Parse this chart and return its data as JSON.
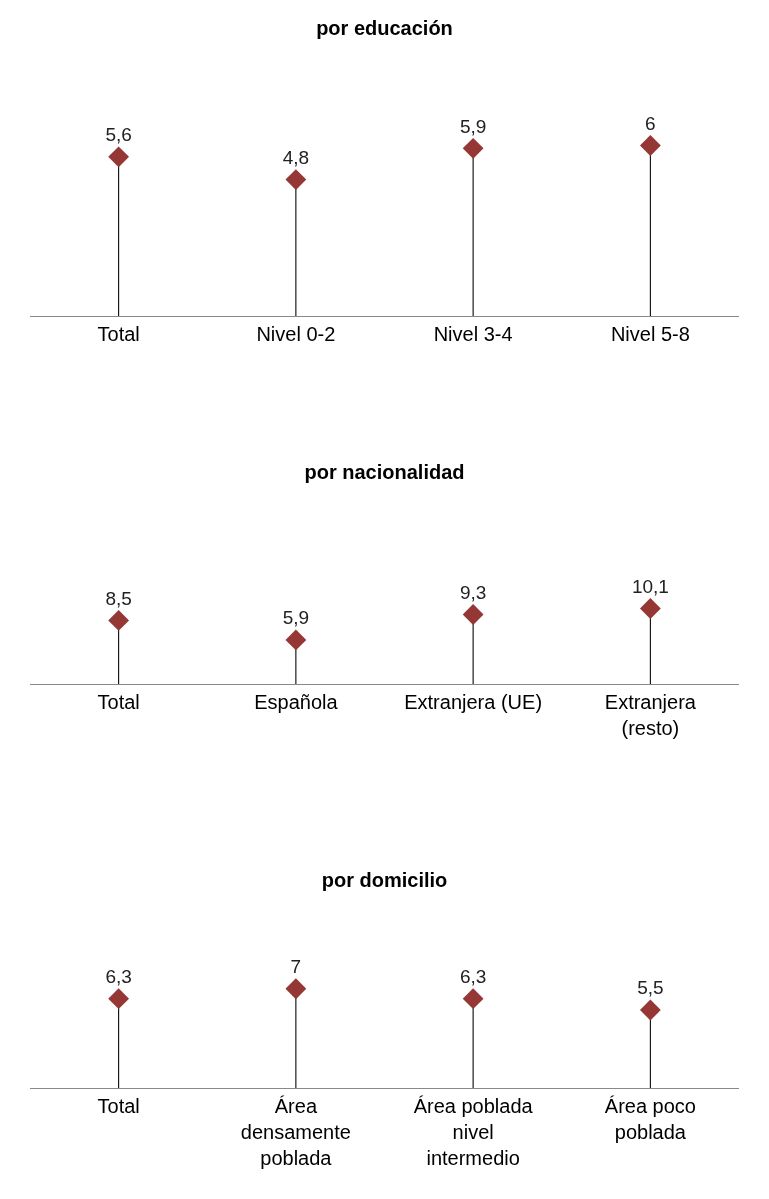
{
  "chart_data": [
    {
      "type": "lollipop",
      "title": "por educación",
      "categories": [
        "Total",
        "Nivel 0-2",
        "Nivel 3-4",
        "Nivel 5-8"
      ],
      "values": [
        5.6,
        4.8,
        5.9,
        6
      ],
      "value_labels": [
        "5,6",
        "4,8",
        "5,9",
        "6"
      ],
      "color": "#953735",
      "marker": "diamond",
      "tick_labels": "x"
    },
    {
      "type": "lollipop",
      "title": "por nacionalidad",
      "categories": [
        "Total",
        "Española",
        "Extranjera (UE)",
        "Extranjera (resto)"
      ],
      "values": [
        8.5,
        5.9,
        9.3,
        10.1
      ],
      "value_labels": [
        "8,5",
        "5,9",
        "9,3",
        "10,1"
      ],
      "color": "#953735",
      "marker": "diamond",
      "tick_labels": "x"
    },
    {
      "type": "lollipop",
      "title": "por domicilio",
      "categories": [
        "Total",
        "Área densamente poblada",
        "Área poblada nivel intermedio",
        "Área poco poblada"
      ],
      "values": [
        6.3,
        7,
        6.3,
        5.5
      ],
      "value_labels": [
        "6,3",
        "7",
        "6,3",
        "5,5"
      ],
      "color": "#953735",
      "marker": "diamond",
      "tick_labels": "x"
    }
  ]
}
